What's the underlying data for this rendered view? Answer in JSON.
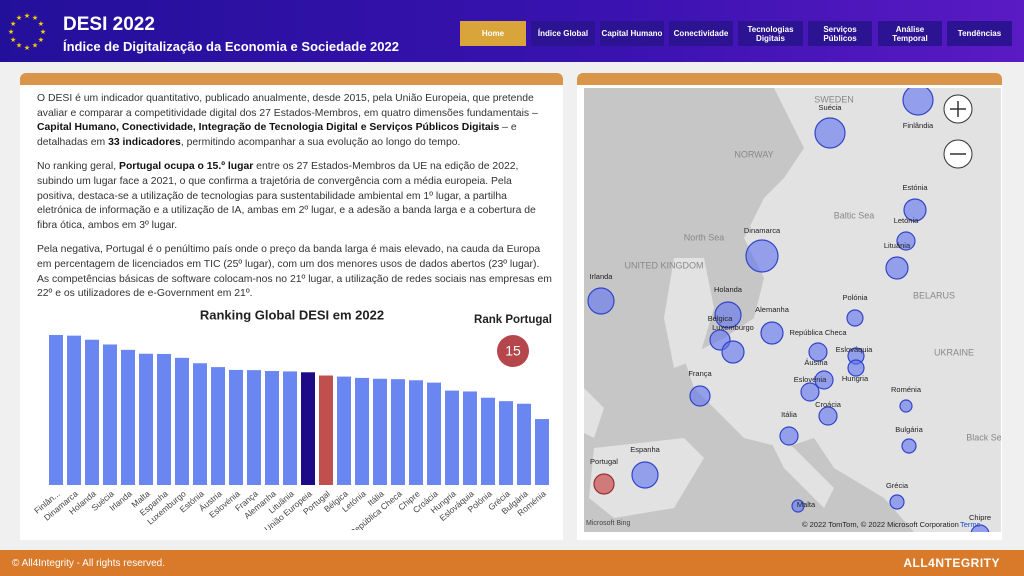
{
  "header": {
    "title": "DESI 2022",
    "subtitle": "Índice de Digitalização da Economia e Sociedade 2022"
  },
  "nav": {
    "active": 0,
    "items": [
      "Home",
      "Índice Global",
      "Capital Humano",
      "Conectividade",
      "Tecnologias Digitais",
      "Serviços Públicos",
      "Análise Temporal",
      "Tendências"
    ]
  },
  "text": {
    "paragraphs": [
      [
        {
          "text": "O DESI é um indicador quantitativo, publicado anualmente, desde 2015, pela União Europeia, que pretende avaliar e comparar a competitividade digital dos 27 Estados-Membros, em quatro dimensões fundamentais – ",
          "bold": false
        },
        {
          "text": "Capital Humano, Conectividade, Integração de Tecnologia Digital e Serviços Públicos Digitais",
          "bold": true
        },
        {
          "text": " – e detalhadas em ",
          "bold": false
        },
        {
          "text": "33 indicadores",
          "bold": true
        },
        {
          "text": ", permitindo acompanhar a sua evolução ao longo do tempo.",
          "bold": false
        }
      ],
      [
        {
          "text": "No ranking geral, ",
          "bold": false
        },
        {
          "text": "Portugal ocupa o 15.º lugar",
          "bold": true
        },
        {
          "text": " entre os 27 Estados-Membros da UE na edição de 2022, subindo um lugar face a 2021, o que confirma a trajetória de convergência com a média europeia. Pela positiva, destaca-se a utilização de tecnologias para sustentabilidade ambiental em 1º lugar, a partilha eletrónica de informação e a utilização de IA, ambas em 2º lugar, e a adesão a banda larga e a cobertura de fibra ótica, ambos em 3º lugar.",
          "bold": false
        }
      ],
      [
        {
          "text": "Pela negativa, Portugal é o penúltimo país onde o preço da banda larga é mais elevado, na cauda da Europa em percentagem de licenciados em TIC (25º lugar), com um dos menores usos de dados abertos (23º lugar). As competências básicas de software colocam-nos no 21º lugar, a utilização de redes sociais nas empresas em 22º e os utilizadores de e-Government em 21º.",
          "bold": false
        }
      ]
    ]
  },
  "chart_data": {
    "type": "bar",
    "title": "Ranking Global DESI em 2022",
    "categories": [
      "Finlân...",
      "Dinamarca",
      "Holanda",
      "Suécia",
      "Irlanda",
      "Malta",
      "Espanha",
      "Luxemburgo",
      "Estónia",
      "Áustria",
      "Eslovénia",
      "França",
      "Alemanha",
      "Lituânia",
      "União Europeia",
      "Portugal",
      "Bélgica",
      "Letónia",
      "Itália",
      "República Checa",
      "Chipre",
      "Croácia",
      "Hungria",
      "Eslováquia",
      "Polónia",
      "Grécia",
      "Bulgária",
      "Roménia"
    ],
    "values": [
      69.6,
      69.3,
      67.4,
      65.2,
      62.7,
      60.9,
      60.8,
      59.0,
      56.5,
      54.7,
      53.4,
      53.3,
      52.9,
      52.7,
      52.3,
      50.8,
      50.3,
      49.7,
      49.3,
      49.1,
      48.6,
      47.5,
      43.8,
      43.4,
      40.5,
      38.9,
      37.7,
      30.6
    ],
    "colors": [
      "#6a86f0",
      "#6a86f0",
      "#6a86f0",
      "#6a86f0",
      "#6a86f0",
      "#6a86f0",
      "#6a86f0",
      "#6a86f0",
      "#6a86f0",
      "#6a86f0",
      "#6a86f0",
      "#6a86f0",
      "#6a86f0",
      "#6a86f0",
      "#1c0a86",
      "#c0504d",
      "#6a86f0",
      "#6a86f0",
      "#6a86f0",
      "#6a86f0",
      "#6a86f0",
      "#6a86f0",
      "#6a86f0",
      "#6a86f0",
      "#6a86f0",
      "#6a86f0",
      "#6a86f0",
      "#6a86f0"
    ]
  },
  "rank": {
    "label": "Rank Portugal",
    "value": 15
  },
  "map": {
    "markers": [
      "Suécia",
      "Finlândia",
      "Dinamarca",
      "Irlanda",
      "Holanda",
      "Bélgica",
      "Luxemburgo",
      "Alemanha",
      "França",
      "Espanha",
      "Portugal",
      "Estónia",
      "Letónia",
      "Lituânia",
      "Polónia",
      "República Checa",
      "Áustria",
      "Eslováquia",
      "Hungria",
      "Eslovénia",
      "Croácia",
      "Itália",
      "Roménia",
      "Bulgária",
      "Malta",
      "Grécia",
      "Chipre"
    ],
    "labels": [
      "SWEDEN",
      "NORWAY",
      "North Sea",
      "Baltic Sea",
      "BELARUS",
      "UKRAINE",
      "UNITED KINGDOM",
      "Black Se"
    ],
    "attribution": "© 2022 TomTom, © 2022 Microsoft Corporation",
    "terms": "Terms",
    "provider": "Microsoft Bing"
  },
  "footer": {
    "copyright": "© All4Integrity - All rights reserved.",
    "brand": "ALL4NTEGRITY"
  }
}
